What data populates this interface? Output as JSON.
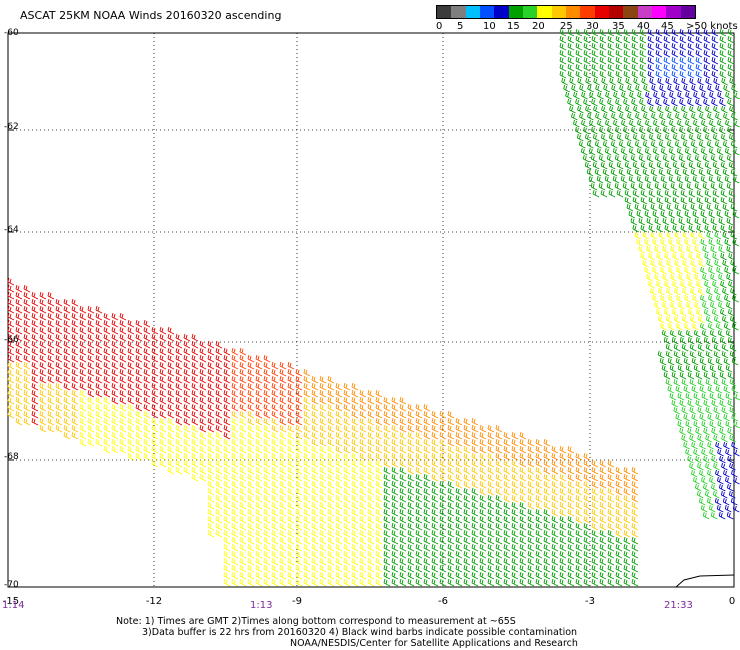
{
  "title": "ASCAT 25KM NOAA Winds 20160320 ascending",
  "colorbar": {
    "labels": [
      "0",
      "5",
      "10",
      "15",
      "20",
      "25",
      "30",
      "35",
      "40",
      "45",
      ">50 knots"
    ],
    "colors": [
      "#3c3c3c",
      "#7f7f7f",
      "#00bfff",
      "#0050ff",
      "#0000c8",
      "#00a000",
      "#28d228",
      "#ffff00",
      "#ffc800",
      "#ff8c00",
      "#ff3c00",
      "#e60000",
      "#b40000",
      "#8b4513",
      "#c83cc8",
      "#ff00ff",
      "#a000c8",
      "#6400a0"
    ]
  },
  "axes": {
    "y_labels": [
      "-60",
      "-62",
      "-64",
      "-66",
      "-68",
      "-70"
    ],
    "x_labels": [
      "-15",
      "-12",
      "-9",
      "-6",
      "-3",
      "0"
    ]
  },
  "times": {
    "left": "1:14",
    "middle": "1:13",
    "right": "21:33"
  },
  "notes": {
    "line1": "Note: 1) Times are GMT 2)Times along bottom correspond to measurement at ~65S",
    "line2": "3)Data buffer is 22 hrs from 20160320 4) Black wind barbs indicate possible contamination",
    "line3": "NOAA/NESDIS/Center for Satellite Applications and Research"
  }
}
